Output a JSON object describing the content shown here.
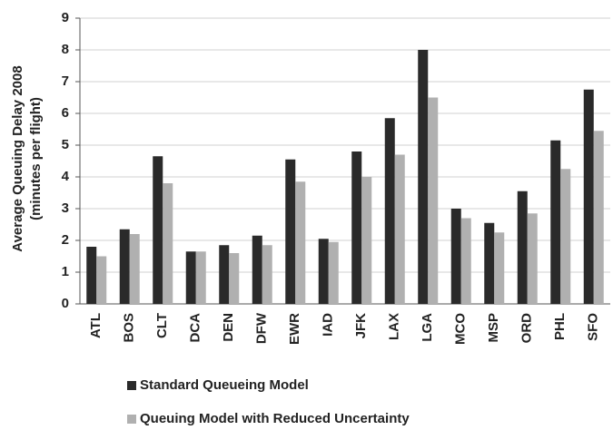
{
  "chart_data": {
    "type": "bar",
    "y_label": [
      "Average Queuing Delay 2008",
      "(minutes per flight)"
    ],
    "categories": [
      "ATL",
      "BOS",
      "CLT",
      "DCA",
      "DEN",
      "DFW",
      "EWR",
      "IAD",
      "JFK",
      "LAX",
      "LGA",
      "MCO",
      "MSP",
      "ORD",
      "PHL",
      "SFO"
    ],
    "series": [
      {
        "name": "Standard Queueing Model",
        "color": "#2a2a2a",
        "values": [
          1.8,
          2.35,
          4.65,
          1.65,
          1.85,
          2.15,
          4.55,
          2.05,
          4.8,
          5.85,
          8.0,
          3.0,
          2.55,
          3.55,
          5.15,
          6.75
        ]
      },
      {
        "name": "Queuing Model with Reduced Uncertainty",
        "color": "#b0b0b0",
        "values": [
          1.5,
          2.2,
          3.8,
          1.65,
          1.6,
          1.85,
          3.85,
          1.95,
          4.0,
          4.7,
          6.5,
          2.7,
          2.25,
          2.85,
          4.25,
          5.45
        ]
      }
    ],
    "ylim": [
      0,
      9
    ],
    "yticks": [
      0,
      1,
      2,
      3,
      4,
      5,
      6,
      7,
      8,
      9
    ],
    "grid": true
  }
}
